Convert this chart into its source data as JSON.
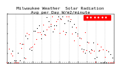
{
  "title": "Milwaukee Weather  Solar Radiation",
  "subtitle": "Avg per Day W/m2/minute",
  "background_color": "#ffffff",
  "plot_bg_color": "#ffffff",
  "red_color": "#ff0000",
  "black_color": "#000000",
  "grid_color": "#aaaaaa",
  "ylim": [
    0,
    1.0
  ],
  "xlim": [
    0,
    365
  ],
  "title_fontsize": 4.5,
  "tick_fontsize": 3,
  "legend_box_color": "#ff0000",
  "num_points": 60
}
